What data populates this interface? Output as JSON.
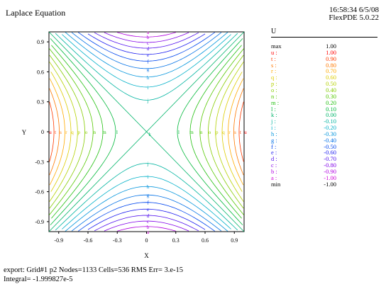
{
  "header": {
    "title": "Laplace Equation",
    "time": "16:58:34 6/5/08",
    "version": "FlexPDE 5.0.22"
  },
  "legend": {
    "variable": "U",
    "entries": [
      {
        "key": "max",
        "value": "1.00",
        "color": "#000000"
      },
      {
        "key": "u :",
        "value": "1.00",
        "color": "#ff0000"
      },
      {
        "key": "t :",
        "value": "0.90",
        "color": "#ff3a00"
      },
      {
        "key": "s :",
        "value": "0.80",
        "color": "#ff7800"
      },
      {
        "key": "r :",
        "value": "0.70",
        "color": "#ffaa00"
      },
      {
        "key": "q :",
        "value": "0.60",
        "color": "#ddcc00"
      },
      {
        "key": "p :",
        "value": "0.50",
        "color": "#b4d200"
      },
      {
        "key": "o :",
        "value": "0.40",
        "color": "#86cc00"
      },
      {
        "key": "n :",
        "value": "0.30",
        "color": "#55c800"
      },
      {
        "key": "m :",
        "value": "0.20",
        "color": "#22c010"
      },
      {
        "key": "l :",
        "value": "0.10",
        "color": "#00b83a"
      },
      {
        "key": "k :",
        "value": "0.00",
        "color": "#00b46a"
      },
      {
        "key": "j :",
        "value": "-0.10",
        "color": "#00b4a0"
      },
      {
        "key": "i :",
        "value": "-0.20",
        "color": "#00b0c8"
      },
      {
        "key": "h :",
        "value": "-0.30",
        "color": "#0094dc"
      },
      {
        "key": "g :",
        "value": "-0.40",
        "color": "#0070e6"
      },
      {
        "key": "f :",
        "value": "-0.50",
        "color": "#0046ee"
      },
      {
        "key": "e :",
        "value": "-0.60",
        "color": "#2020f0"
      },
      {
        "key": "d :",
        "value": "-0.70",
        "color": "#5010ee"
      },
      {
        "key": "c :",
        "value": "-0.80",
        "color": "#8000e8"
      },
      {
        "key": "b :",
        "value": "-0.90",
        "color": "#b000e0"
      },
      {
        "key": "a :",
        "value": "-1.00",
        "color": "#d000d8"
      },
      {
        "key": "min",
        "value": "-1.00",
        "color": "#000000"
      }
    ]
  },
  "footer": {
    "line1": "export:  Grid#1  p2  Nodes=1133 Cells=536 RMS Err= 3.e-15",
    "line2": "Integral= -1.999827e-5"
  },
  "chart_data": {
    "type": "contour",
    "function": "x^2 - y^2",
    "xlabel": "X",
    "ylabel": "Y",
    "xlim": [
      -1,
      1
    ],
    "ylim": [
      -1,
      1
    ],
    "xticks": [
      "-0.9",
      "-0.6",
      "-0.3",
      "0",
      "0.3",
      "0.6",
      "0.9"
    ],
    "yticks": [
      "0.9",
      "0.6",
      "0.3",
      "0",
      "-0.3",
      "-0.6",
      "-0.9"
    ],
    "levels": [
      {
        "label": "u",
        "value": 1.0
      },
      {
        "label": "t",
        "value": 0.9
      },
      {
        "label": "s",
        "value": 0.8
      },
      {
        "label": "r",
        "value": 0.7
      },
      {
        "label": "q",
        "value": 0.6
      },
      {
        "label": "p",
        "value": 0.5
      },
      {
        "label": "o",
        "value": 0.4
      },
      {
        "label": "n",
        "value": 0.3
      },
      {
        "label": "m",
        "value": 0.2
      },
      {
        "label": "l",
        "value": 0.1
      },
      {
        "label": "k",
        "value": 0.0
      },
      {
        "label": "j",
        "value": -0.1
      },
      {
        "label": "i",
        "value": -0.2
      },
      {
        "label": "h",
        "value": -0.3
      },
      {
        "label": "g",
        "value": -0.4
      },
      {
        "label": "f",
        "value": -0.5
      },
      {
        "label": "e",
        "value": -0.6
      },
      {
        "label": "d",
        "value": -0.7
      },
      {
        "label": "c",
        "value": -0.8
      },
      {
        "label": "b",
        "value": -0.9
      },
      {
        "label": "a",
        "value": -1.0
      }
    ],
    "grid": false,
    "legend_position": "right"
  }
}
